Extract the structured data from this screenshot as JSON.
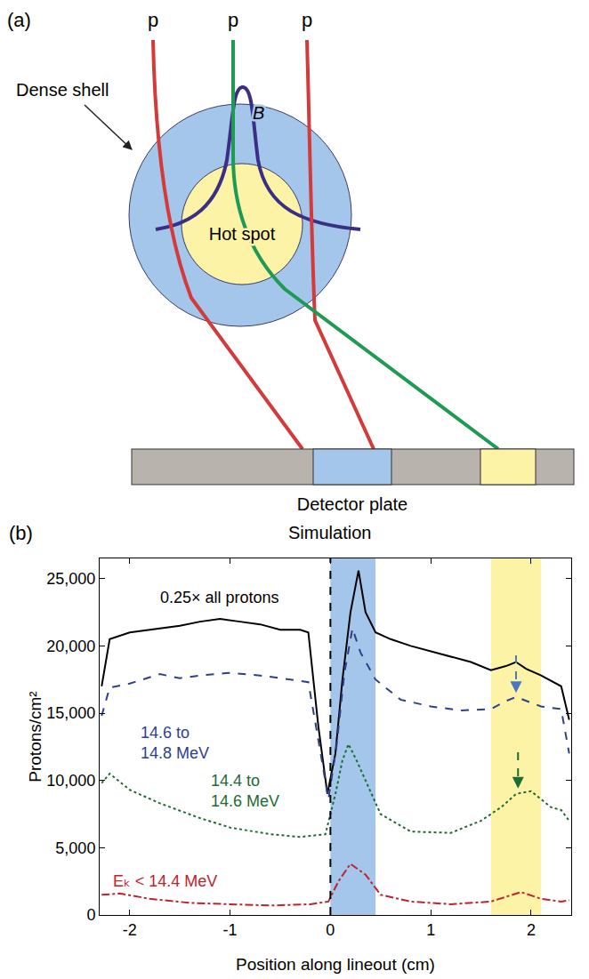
{
  "diagram": {
    "label": "(a)",
    "protons": [
      "p",
      "p",
      "p"
    ],
    "shell_label": "Dense shell",
    "field_label": "B",
    "core_label": "Hot spot",
    "detector_label": "Detector plate"
  },
  "chart_data": {
    "type": "line",
    "label": "(b)",
    "title": "Simulation",
    "x_label": "Position along lineout (cm)",
    "y_label": "Protons/cm²",
    "xlim": [
      -2.3,
      2.4
    ],
    "xticks": [
      -2,
      -1,
      0,
      1,
      2
    ],
    "ylim": [
      0,
      26500
    ],
    "yticks": [
      0,
      {
        "value": 5000,
        "label": "5,000"
      },
      {
        "value": 10000,
        "label": "10,000"
      },
      {
        "value": 15000,
        "label": "15,000"
      },
      {
        "value": 20000,
        "label": "20,000"
      },
      {
        "value": 25000,
        "label": "25,000"
      }
    ],
    "grid": false,
    "bands": [
      {
        "x0": 0,
        "x1": 0.45,
        "color": "#a4c6ea"
      },
      {
        "x0": 1.6,
        "x1": 2.1,
        "color": "#fdf3a6"
      }
    ],
    "vline": 0,
    "arrows": [
      {
        "x": 1.85,
        "y_from": 19300,
        "y_to": 16500,
        "color": "#4a78c0"
      },
      {
        "x": 1.87,
        "y_from": 12100,
        "y_to": 9400,
        "color": "#1e6b34"
      }
    ],
    "series": [
      {
        "name": "0.25× all protons",
        "color": "#000000",
        "line_style": "solid",
        "x": [
          -2.28,
          -2.2,
          -2.0,
          -1.8,
          -1.5,
          -1.3,
          -1.1,
          -0.9,
          -0.7,
          -0.5,
          -0.3,
          -0.22,
          -0.12,
          -0.03,
          0.05,
          0.12,
          0.2,
          0.28,
          0.35,
          0.45,
          0.6,
          0.8,
          1.0,
          1.2,
          1.4,
          1.6,
          1.75,
          1.85,
          1.95,
          2.1,
          2.2,
          2.3,
          2.38
        ],
        "values": [
          17000,
          20500,
          21000,
          21200,
          21500,
          21800,
          22000,
          21800,
          21600,
          21200,
          21200,
          21000,
          14000,
          9000,
          12000,
          17500,
          22500,
          25600,
          22500,
          21000,
          20500,
          20000,
          19600,
          19200,
          18800,
          18200,
          18500,
          18800,
          18300,
          17800,
          17400,
          17000,
          14500
        ]
      },
      {
        "name": "14.6 to 14.8 MeV",
        "color": "#2e3f8f",
        "line_style": "dash",
        "x": [
          -2.28,
          -2.2,
          -2.0,
          -1.7,
          -1.5,
          -1.3,
          -1.0,
          -0.7,
          -0.4,
          -0.22,
          -0.12,
          -0.02,
          0.06,
          0.14,
          0.22,
          0.3,
          0.45,
          0.7,
          1.0,
          1.3,
          1.6,
          1.75,
          1.85,
          1.95,
          2.1,
          2.3,
          2.38
        ],
        "values": [
          14800,
          16900,
          17200,
          17900,
          17600,
          17800,
          18000,
          17800,
          17500,
          17300,
          13000,
          8600,
          12500,
          18000,
          21300,
          19500,
          17500,
          16000,
          15500,
          15200,
          15300,
          15900,
          16200,
          15900,
          15500,
          15300,
          12000
        ]
      },
      {
        "name": "14.4 to 14.6 MeV",
        "color": "#1e6b34",
        "line_style": "dot",
        "x": [
          -2.28,
          -2.2,
          -2.0,
          -1.7,
          -1.3,
          -1.0,
          -0.6,
          -0.3,
          -0.05,
          0.05,
          0.12,
          0.18,
          0.26,
          0.35,
          0.5,
          0.8,
          1.2,
          1.5,
          1.7,
          1.85,
          2.0,
          2.2,
          2.3,
          2.38
        ],
        "values": [
          9800,
          10500,
          9300,
          8300,
          7200,
          6500,
          6000,
          5800,
          6000,
          9000,
          11500,
          12700,
          11500,
          10000,
          7500,
          6200,
          6100,
          7000,
          8000,
          9000,
          9200,
          8000,
          7800,
          7000
        ]
      },
      {
        "name": "Eₖ < 14.4 MeV",
        "color": "#c0232e",
        "line_style": "dashdot",
        "x": [
          -2.28,
          -2.1,
          -1.8,
          -1.4,
          -1.0,
          -0.6,
          -0.2,
          -0.02,
          0.08,
          0.2,
          0.35,
          0.5,
          0.8,
          1.2,
          1.6,
          1.9,
          2.1,
          2.3,
          2.38
        ],
        "values": [
          1500,
          1600,
          1200,
          900,
          800,
          700,
          800,
          1000,
          2500,
          3800,
          3000,
          1500,
          1000,
          800,
          1000,
          1700,
          1200,
          1000,
          1100
        ]
      }
    ]
  }
}
